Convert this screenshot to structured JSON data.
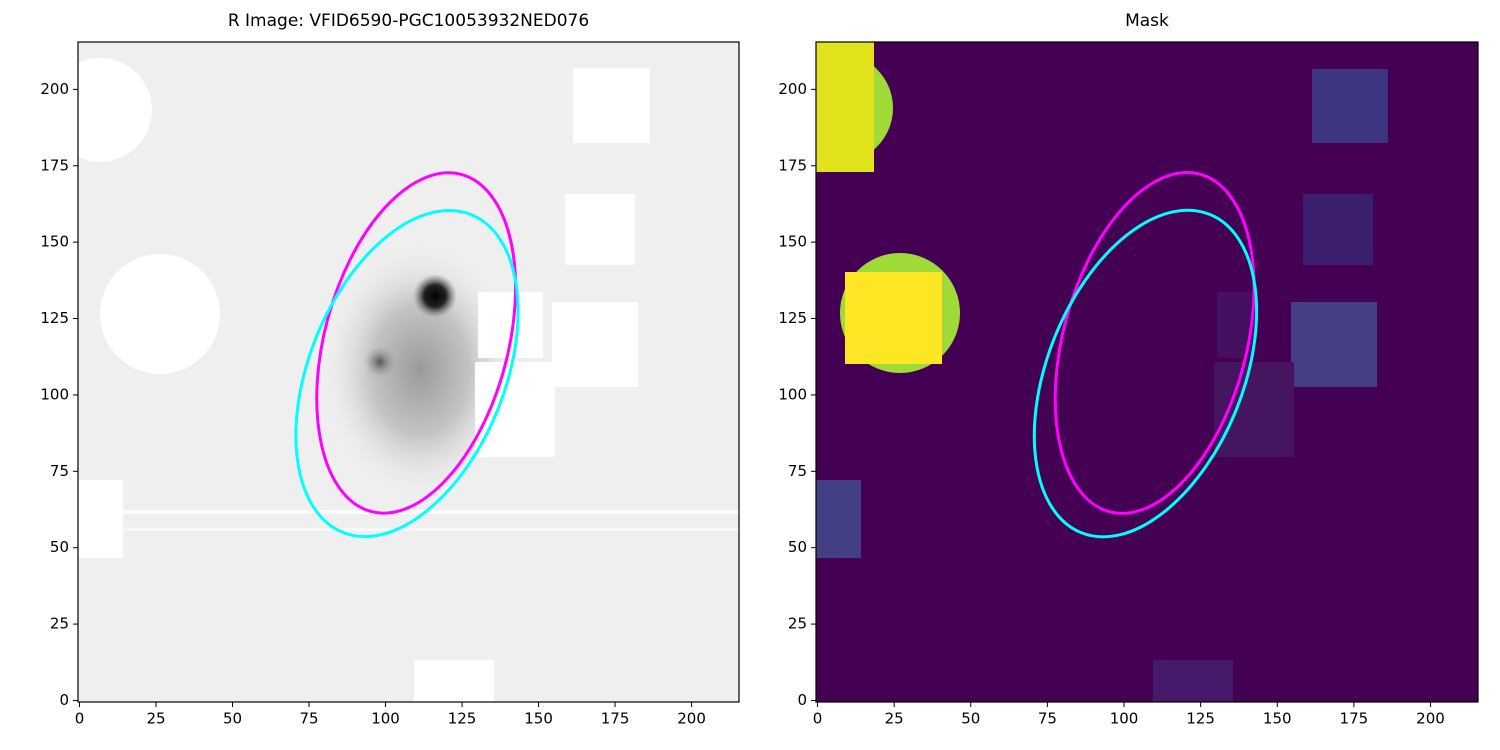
{
  "chart_data": [
    {
      "type": "image",
      "title": "R Image: VFID6590-PGC10053932NED076",
      "xlim": [
        -0.5,
        215.5
      ],
      "ylim": [
        -0.5,
        215.5
      ],
      "xticks": [
        0,
        25,
        50,
        75,
        100,
        125,
        150,
        175,
        200
      ],
      "yticks": [
        0,
        25,
        50,
        75,
        100,
        125,
        150,
        175,
        200
      ],
      "ellipses": [
        {
          "color": "#ff00ff",
          "x": 110,
          "y": 117,
          "a": 57,
          "b": 30,
          "angle": 75
        },
        {
          "color": "#00ffff",
          "x": 107,
          "y": 107,
          "a": 56,
          "b": 32,
          "angle": 68
        }
      ]
    },
    {
      "type": "image",
      "title": "Mask",
      "xlim": [
        -0.5,
        215.5
      ],
      "ylim": [
        -0.5,
        215.5
      ],
      "xticks": [
        0,
        25,
        50,
        75,
        100,
        125,
        150,
        175,
        200
      ],
      "yticks": [
        0,
        25,
        50,
        75,
        100,
        125,
        150,
        175,
        200
      ],
      "ellipses": [
        {
          "color": "#ff00ff",
          "x": 110,
          "y": 117,
          "a": 57,
          "b": 30,
          "angle": 75
        },
        {
          "color": "#00ffff",
          "x": 107,
          "y": 107,
          "a": 56,
          "b": 32,
          "angle": 68
        }
      ]
    }
  ]
}
